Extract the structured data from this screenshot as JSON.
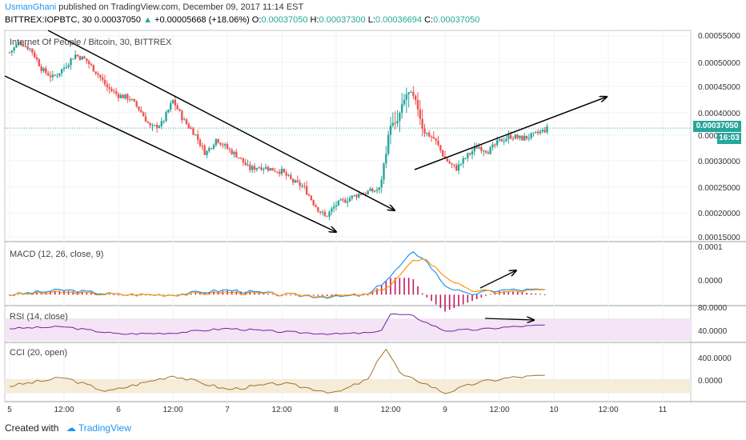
{
  "header": {
    "author": "UsmanGhani",
    "published_text": " published on TradingView.com, December 09, 2017 11:14 EST",
    "symbol_line": "BITTREX:IOPBTC, 30",
    "last": "0.00037050",
    "change": "+0.00005668 (+18.06%)",
    "open_label": "O:",
    "open": "0.00037050",
    "high_label": "H:",
    "high": "0.00037300",
    "low_label": "L:",
    "low": "0.00036694",
    "close_label": "C:",
    "close": "0.00037050"
  },
  "colors": {
    "up": "#26a69a",
    "down": "#ef5350",
    "macd_line": "#2196f3",
    "signal_line": "#ff9800",
    "histogram": "#c2185b",
    "rsi_line": "#7b1fa2",
    "rsi_band": "#f3e5f5",
    "cci_line": "#a1732a",
    "cci_band": "#f5ecd9",
    "current_price_line": "#26a69a",
    "accent": "#2196f3"
  },
  "price_pane": {
    "title": "Internet Of People / Bitcoin, 30, BITTREX",
    "y_ticks": [
      "0.00055000",
      "0.00050000",
      "0.00045000",
      "0.00040000",
      "0.00035000",
      "0.00030000",
      "0.00025000",
      "0.00020000",
      "0.00015000"
    ],
    "current_price": "0.00037050",
    "countdown": "16:03"
  },
  "macd_pane": {
    "title": "MACD (12, 26, close, 9)",
    "y_ticks": [
      "0.0001",
      "0.0000"
    ]
  },
  "rsi_pane": {
    "title": "RSI (14, close)",
    "y_ticks": [
      "80.0000",
      "40.0000"
    ]
  },
  "cci_pane": {
    "title": "CCI (20, open)",
    "y_ticks": [
      "400.0000",
      "0.0000"
    ]
  },
  "x_axis": {
    "ticks": [
      "5",
      "12:00",
      "6",
      "12:00",
      "7",
      "12:00",
      "8",
      "12:00",
      "9",
      "12:00",
      "10",
      "12:00",
      "11"
    ]
  },
  "chart_data": [
    {
      "type": "candlestick",
      "title": "Internet Of People / Bitcoin, 30, BITTREX",
      "ylim": [
        0.00015,
        0.00056
      ],
      "x_positions": [
        0,
        0.5,
        1,
        1.5,
        2,
        2.5,
        3,
        3.5,
        4,
        4.5,
        5,
        5.5,
        6
      ],
      "points": [
        [
          0,
          0.00052
        ],
        [
          0.1,
          0.00054
        ],
        [
          0.2,
          0.000525
        ],
        [
          0.3,
          0.000485
        ],
        [
          0.4,
          0.00047
        ],
        [
          0.5,
          0.00049
        ],
        [
          0.6,
          0.000515
        ],
        [
          0.7,
          0.000505
        ],
        [
          0.8,
          0.00048
        ],
        [
          0.9,
          0.00045
        ],
        [
          1.0,
          0.000435
        ],
        [
          1.1,
          0.00043
        ],
        [
          1.2,
          0.000405
        ],
        [
          1.3,
          0.00037
        ],
        [
          1.4,
          0.00038
        ],
        [
          1.5,
          0.000425
        ],
        [
          1.6,
          0.000385
        ],
        [
          1.7,
          0.00036
        ],
        [
          1.8,
          0.00032
        ],
        [
          1.9,
          0.00035
        ],
        [
          2.0,
          0.00033
        ],
        [
          2.1,
          0.000315
        ],
        [
          2.2,
          0.00029
        ],
        [
          2.3,
          0.000295
        ],
        [
          2.4,
          0.00029
        ],
        [
          2.5,
          0.000285
        ],
        [
          2.6,
          0.000265
        ],
        [
          2.7,
          0.000255
        ],
        [
          2.8,
          0.00022
        ],
        [
          2.9,
          0.000195
        ],
        [
          3.0,
          0.00022
        ],
        [
          3.1,
          0.00023
        ],
        [
          3.2,
          0.00024
        ],
        [
          3.3,
          0.000245
        ],
        [
          3.4,
          0.00025
        ],
        [
          3.5,
          0.00038
        ],
        [
          3.55,
          0.000375
        ],
        [
          3.6,
          0.00041
        ],
        [
          3.65,
          0.00044
        ],
        [
          3.7,
          0.000435
        ],
        [
          3.75,
          0.00041
        ],
        [
          3.8,
          0.000365
        ],
        [
          3.9,
          0.00035
        ],
        [
          4.0,
          0.00031
        ],
        [
          4.1,
          0.00029
        ],
        [
          4.2,
          0.000315
        ],
        [
          4.3,
          0.000335
        ],
        [
          4.4,
          0.000325
        ],
        [
          4.5,
          0.000345
        ],
        [
          4.6,
          0.000355
        ],
        [
          4.7,
          0.00035
        ],
        [
          4.8,
          0.000355
        ],
        [
          4.9,
          0.000365
        ],
        [
          4.95,
          0.0003705
        ]
      ],
      "trendlines": "descending channel with two parallel lines and projected arrow; ascending support line with arrow"
    },
    {
      "type": "line",
      "title": "MACD (12, 26, close, 9)",
      "ylim": [
        -2e-05,
        0.00011
      ],
      "series": [
        {
          "name": "MACD",
          "x": [
            0,
            0.5,
            1,
            1.5,
            2,
            2.5,
            3,
            3.3,
            3.5,
            3.7,
            3.8,
            4.0,
            4.2,
            4.5,
            4.95
          ],
          "values": [
            0.0,
            1e-05,
            0.0,
            0.0,
            1e-05,
            0.0,
            -5e-06,
            0.0,
            4e-05,
            9e-05,
            8e-05,
            2e-05,
            0.0,
            1e-05,
            1e-05
          ]
        },
        {
          "name": "Signal",
          "x": [
            0,
            0.5,
            1,
            1.5,
            2,
            2.5,
            3,
            3.3,
            3.5,
            3.7,
            3.8,
            4.0,
            4.2,
            4.5,
            4.95
          ],
          "values": [
            0.0,
            5e-06,
            0.0,
            0.0,
            5e-06,
            0.0,
            -3e-06,
            0.0,
            2e-05,
            7e-05,
            8e-05,
            4e-05,
            1e-05,
            5e-06,
            1e-05
          ]
        }
      ]
    },
    {
      "type": "line",
      "title": "RSI (14, close)",
      "ylim": [
        30,
        90
      ],
      "band": [
        30,
        70
      ],
      "series": [
        {
          "name": "RSI",
          "x": [
            0,
            0.5,
            1,
            1.5,
            2,
            2.5,
            3,
            3.4,
            3.5,
            3.7,
            3.8,
            4.0,
            4.3,
            4.6,
            4.95
          ],
          "values": [
            52,
            55,
            42,
            44,
            52,
            46,
            42,
            45,
            78,
            75,
            65,
            48,
            50,
            55,
            58
          ]
        }
      ]
    },
    {
      "type": "line",
      "title": "CCI (20, open)",
      "ylim": [
        -200,
        600
      ],
      "band": [
        -100,
        100
      ],
      "series": [
        {
          "name": "CCI",
          "x": [
            0,
            0.5,
            0.9,
            1.5,
            2,
            2.5,
            3,
            3.3,
            3.45,
            3.6,
            3.8,
            4.0,
            4.3,
            4.6,
            4.95
          ],
          "values": [
            0,
            120,
            -80,
            150,
            -50,
            40,
            -100,
            100,
            560,
            150,
            50,
            -100,
            50,
            120,
            150
          ]
        }
      ]
    }
  ]
}
